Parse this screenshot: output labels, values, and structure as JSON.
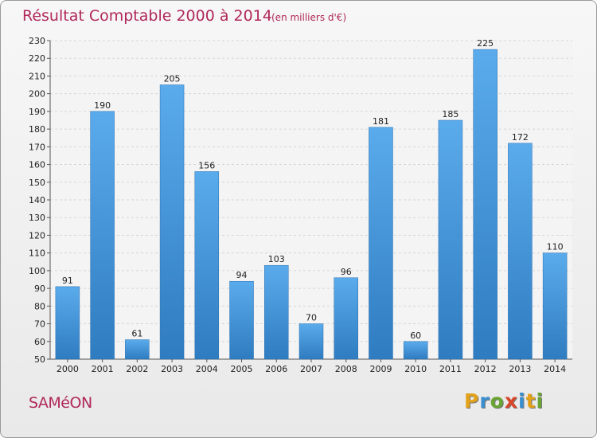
{
  "chart_data": {
    "type": "bar",
    "title": "Résultat Comptable 2000 à 2014",
    "subtitle": "(en milliers d'€)",
    "categories": [
      "2000",
      "2001",
      "2002",
      "2003",
      "2004",
      "2005",
      "2006",
      "2007",
      "2008",
      "2009",
      "2010",
      "2011",
      "2012",
      "2013",
      "2014"
    ],
    "values": [
      91,
      190,
      61,
      205,
      156,
      94,
      103,
      70,
      96,
      181,
      60,
      185,
      225,
      172,
      110
    ],
    "ylim": [
      50,
      230
    ],
    "yticks": [
      50,
      60,
      70,
      80,
      90,
      100,
      110,
      120,
      130,
      140,
      150,
      160,
      170,
      180,
      190,
      200,
      210,
      220,
      230
    ],
    "grid": true,
    "bar_color": "#3f8fd6"
  },
  "footer": {
    "place": "SAMéON",
    "logo": "Proxiti",
    "logo_colors": [
      "#e3a21a",
      "#3a8fd0",
      "#6aa534",
      "#d9462a",
      "#3a8fd0",
      "#e3a21a",
      "#6aa534"
    ]
  }
}
